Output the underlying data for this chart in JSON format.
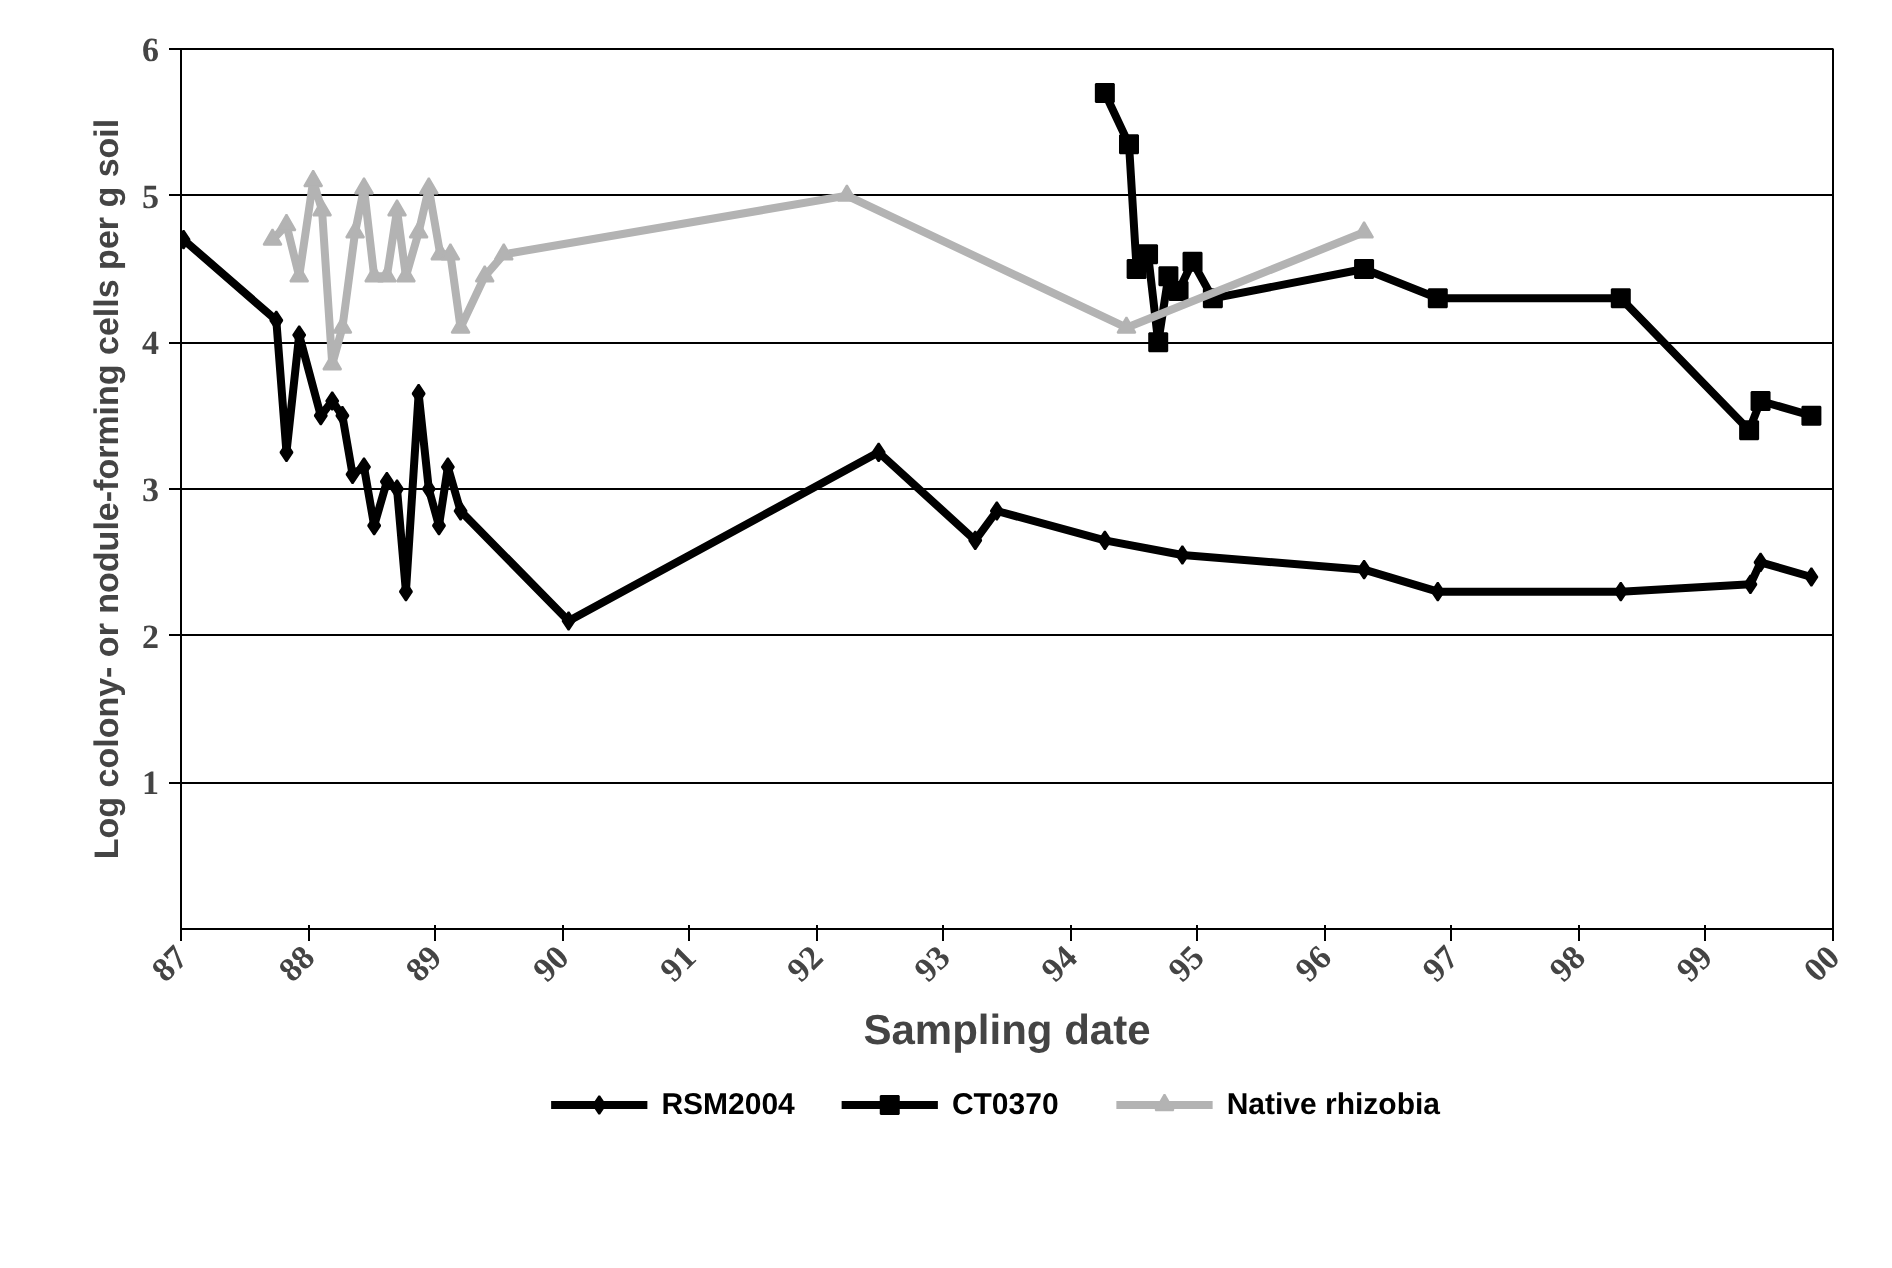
{
  "chart_data": {
    "type": "line",
    "xlabel": "Sampling date",
    "ylabel": "Log colony- or nodule-forming cells per g soil",
    "xlim": [
      1987,
      2000
    ],
    "ylim": [
      0,
      6
    ],
    "xticks": [
      {
        "value": 1987,
        "label": "87"
      },
      {
        "value": 1988,
        "label": "88"
      },
      {
        "value": 1989,
        "label": "89"
      },
      {
        "value": 1990,
        "label": "90"
      },
      {
        "value": 1991,
        "label": "91"
      },
      {
        "value": 1992,
        "label": "92"
      },
      {
        "value": 1993,
        "label": "93"
      },
      {
        "value": 1994,
        "label": "94"
      },
      {
        "value": 1995,
        "label": "95"
      },
      {
        "value": 1996,
        "label": "96"
      },
      {
        "value": 1997,
        "label": "97"
      },
      {
        "value": 1998,
        "label": "98"
      },
      {
        "value": 1999,
        "label": "99"
      },
      {
        "value": 2000,
        "label": "00"
      }
    ],
    "yticks": [
      1,
      2,
      3,
      4,
      5,
      6
    ],
    "grid": "y",
    "legend": "bottom",
    "line_style": "solid",
    "series": [
      {
        "name": "RSM2004",
        "color": "#000000",
        "marker": "diamond",
        "x": [
          1987.02,
          1987.75,
          1987.83,
          1987.93,
          1988.1,
          1988.19,
          1988.27,
          1988.35,
          1988.44,
          1988.52,
          1988.62,
          1988.7,
          1988.77,
          1988.87,
          1988.95,
          1989.03,
          1989.1,
          1989.2,
          1990.05,
          1992.49,
          1993.25,
          1993.42,
          1994.27,
          1994.88,
          1996.31,
          1996.89,
          1998.33,
          1999.35,
          1999.43,
          1999.83
        ],
        "values": [
          4.7,
          4.15,
          3.25,
          4.05,
          3.5,
          3.6,
          3.5,
          3.1,
          3.15,
          2.75,
          3.05,
          3.0,
          2.3,
          3.65,
          3.0,
          2.75,
          3.15,
          2.85,
          2.1,
          3.25,
          2.65,
          2.85,
          2.65,
          2.55,
          2.45,
          2.3,
          2.3,
          2.35,
          2.5,
          2.4
        ]
      },
      {
        "name": "CT0370",
        "color": "#000000",
        "marker": "square",
        "x": [
          1994.27,
          1994.46,
          1994.52,
          1994.61,
          1994.69,
          1994.77,
          1994.85,
          1994.96,
          1995.12,
          1996.31,
          1996.89,
          1998.33,
          1999.34,
          1999.43,
          1999.83
        ],
        "values": [
          5.7,
          5.35,
          4.5,
          4.6,
          4.0,
          4.45,
          4.35,
          4.55,
          4.3,
          4.5,
          4.3,
          4.3,
          3.4,
          3.6,
          3.5
        ]
      },
      {
        "name": "Native rhizobia",
        "color": "#b3b3b3",
        "marker": "triangle",
        "x": [
          1987.72,
          1987.83,
          1987.93,
          1988.04,
          1988.11,
          1988.19,
          1988.27,
          1988.37,
          1988.44,
          1988.52,
          1988.62,
          1988.7,
          1988.77,
          1988.87,
          1988.95,
          1989.04,
          1989.12,
          1989.2,
          1989.39,
          1989.54,
          1992.24,
          1994.44,
          1996.31
        ],
        "values": [
          4.7,
          4.8,
          4.45,
          5.1,
          4.9,
          3.85,
          4.1,
          4.75,
          5.05,
          4.45,
          4.45,
          4.9,
          4.45,
          4.75,
          5.05,
          4.6,
          4.6,
          4.1,
          4.45,
          4.6,
          5.0,
          4.1,
          4.75
        ]
      }
    ]
  }
}
